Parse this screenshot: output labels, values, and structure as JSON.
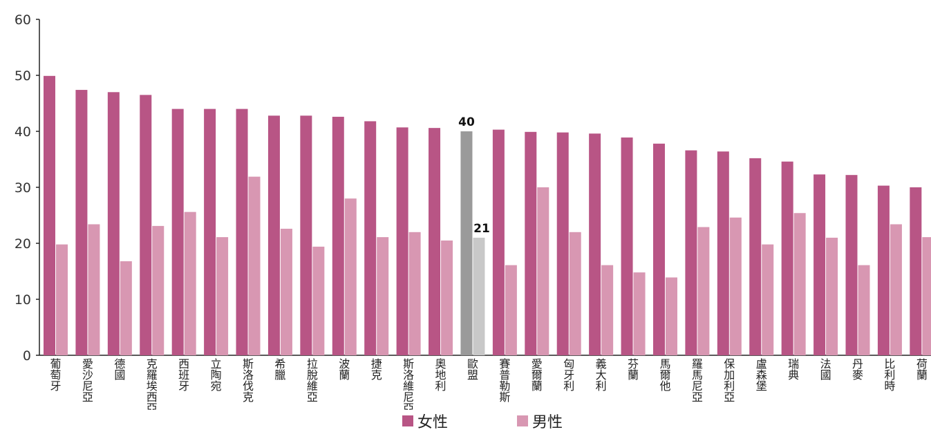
{
  "chart_data": {
    "type": "bar",
    "ylim": [
      0,
      60
    ],
    "yticks": [
      0,
      10,
      20,
      30,
      40,
      50,
      60
    ],
    "categories": [
      "葡萄牙",
      "愛沙尼亞",
      "德國",
      "克羅埃西亞",
      "西班牙",
      "立陶宛",
      "斯洛伐克",
      "希臘",
      "拉脫維亞",
      "波蘭",
      "捷克",
      "斯洛維尼亞",
      "奧地利",
      "歐盟",
      "賽普勒斯",
      "愛爾蘭",
      "匈牙利",
      "義大利",
      "芬蘭",
      "馬爾他",
      "羅馬尼亞",
      "保加利亞",
      "盧森堡",
      "瑞典",
      "法國",
      "丹麥",
      "比利時",
      "荷蘭"
    ],
    "series": [
      {
        "name": "女性",
        "values": [
          49.9,
          47.4,
          47.0,
          46.5,
          44.0,
          44.0,
          44.0,
          42.8,
          42.8,
          42.6,
          41.8,
          40.7,
          40.6,
          40,
          40.3,
          39.9,
          39.8,
          39.6,
          38.9,
          37.8,
          36.6,
          36.4,
          35.2,
          34.6,
          32.3,
          32.2,
          30.3,
          30.0
        ],
        "color": "#b85585"
      },
      {
        "name": "男性",
        "values": [
          19.8,
          23.4,
          16.8,
          23.1,
          25.6,
          21.1,
          31.9,
          22.6,
          19.4,
          28.0,
          21.1,
          22.0,
          20.5,
          21,
          16.1,
          30.0,
          22.0,
          16.1,
          14.8,
          13.9,
          22.9,
          24.6,
          19.8,
          25.4,
          21.0,
          16.1,
          23.4,
          21.1
        ],
        "color": "#d897b2"
      }
    ],
    "highlight": {
      "category": "歐盟",
      "female_color": "#9a9a9a",
      "male_color": "#c8c8c8",
      "labels": [
        "40",
        "21"
      ]
    },
    "legend_position": "bottom-center",
    "grid": false
  }
}
